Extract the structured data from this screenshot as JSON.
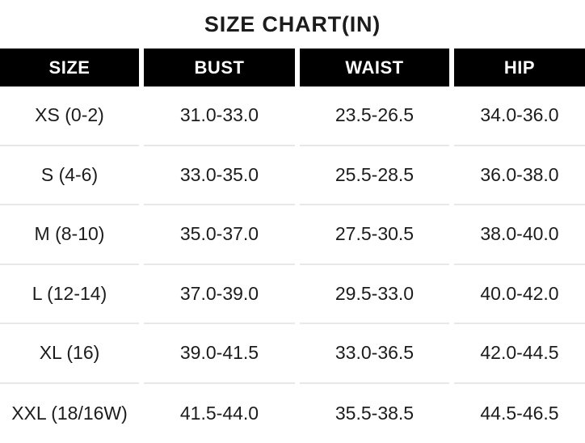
{
  "title": "SIZE CHART(IN)",
  "colors": {
    "background": "#ffffff",
    "header_bg": "#000000",
    "header_text": "#ffffff",
    "text": "#1c1c1c",
    "divider": "#e8e8e8"
  },
  "chart_data": {
    "type": "table",
    "title": "SIZE CHART(IN)",
    "unit": "inches",
    "columns": [
      "SIZE",
      "BUST",
      "WAIST",
      "HIP"
    ],
    "rows": [
      [
        "XS (0-2)",
        "31.0-33.0",
        "23.5-26.5",
        "34.0-36.0"
      ],
      [
        "S (4-6)",
        "33.0-35.0",
        "25.5-28.5",
        "36.0-38.0"
      ],
      [
        "M (8-10)",
        "35.0-37.0",
        "27.5-30.5",
        "38.0-40.0"
      ],
      [
        "L (12-14)",
        "37.0-39.0",
        "29.5-33.0",
        "40.0-42.0"
      ],
      [
        "XL (16)",
        "39.0-41.5",
        "33.0-36.5",
        "42.0-44.5"
      ],
      [
        "XXL (18/16W)",
        "41.5-44.0",
        "35.5-38.5",
        "44.5-46.5"
      ]
    ]
  }
}
